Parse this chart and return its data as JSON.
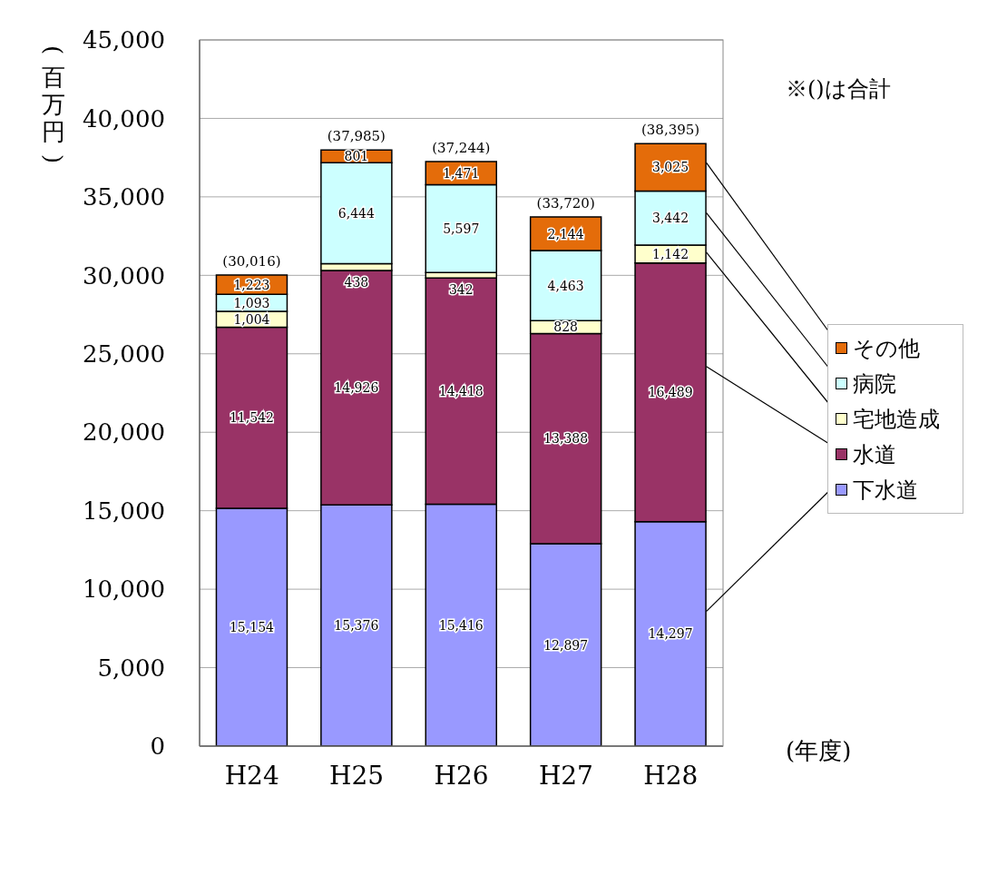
{
  "chart_data": {
    "type": "bar",
    "stacked": true,
    "ylabel": "(百万円)",
    "annotations": [
      "※()は合計",
      "(年度)"
    ],
    "categories": [
      "H24",
      "H25",
      "H26",
      "H27",
      "H28"
    ],
    "series": [
      {
        "name": "下水道",
        "color": "#9999ff",
        "values": [
          15154,
          15376,
          15416,
          12897,
          14297
        ],
        "value_labels": [
          "15,154",
          "15,376",
          "15,416",
          "12,897",
          "14,297"
        ]
      },
      {
        "name": "水道",
        "color": "#993366",
        "values": [
          11542,
          14926,
          14418,
          13388,
          16489
        ],
        "value_labels": [
          "11,542",
          "14,926",
          "14,418",
          "13,388",
          "16,489"
        ]
      },
      {
        "name": "宅地造成",
        "color": "#ffffcc",
        "values": [
          1004,
          438,
          342,
          828,
          1142
        ],
        "value_labels": [
          "1,004",
          "438",
          "342",
          "828",
          "1,142"
        ]
      },
      {
        "name": "病院",
        "color": "#ccffff",
        "values": [
          1093,
          6444,
          5597,
          4463,
          3442
        ],
        "value_labels": [
          "1,093",
          "6,444",
          "5,597",
          "4,463",
          "3,442"
        ]
      },
      {
        "name": "その他",
        "color": "#e46c0a",
        "values": [
          1223,
          801,
          1471,
          2144,
          3025
        ],
        "value_labels": [
          "1,223",
          "801",
          "1,471",
          "2,144",
          "3,025"
        ]
      }
    ],
    "totals": [
      "(30,016)",
      "(37,985)",
      "(37,244)",
      "(33,720)",
      "(38,395)"
    ],
    "ylim": [
      0,
      45000
    ],
    "yticks": [
      0,
      {
        "value": 5000,
        "label": "5,000"
      },
      {
        "value": 10000,
        "label": "10,000"
      },
      {
        "value": 15000,
        "label": "15,000"
      },
      {
        "value": 20000,
        "label": "20,000"
      },
      {
        "value": 25000,
        "label": "25,000"
      },
      {
        "value": 30000,
        "label": "30,000"
      },
      {
        "value": 35000,
        "label": "35,000"
      },
      {
        "value": 40000,
        "label": "40,000"
      },
      {
        "value": 45000,
        "label": "45,000"
      }
    ],
    "grid": "y",
    "legend": "right"
  }
}
